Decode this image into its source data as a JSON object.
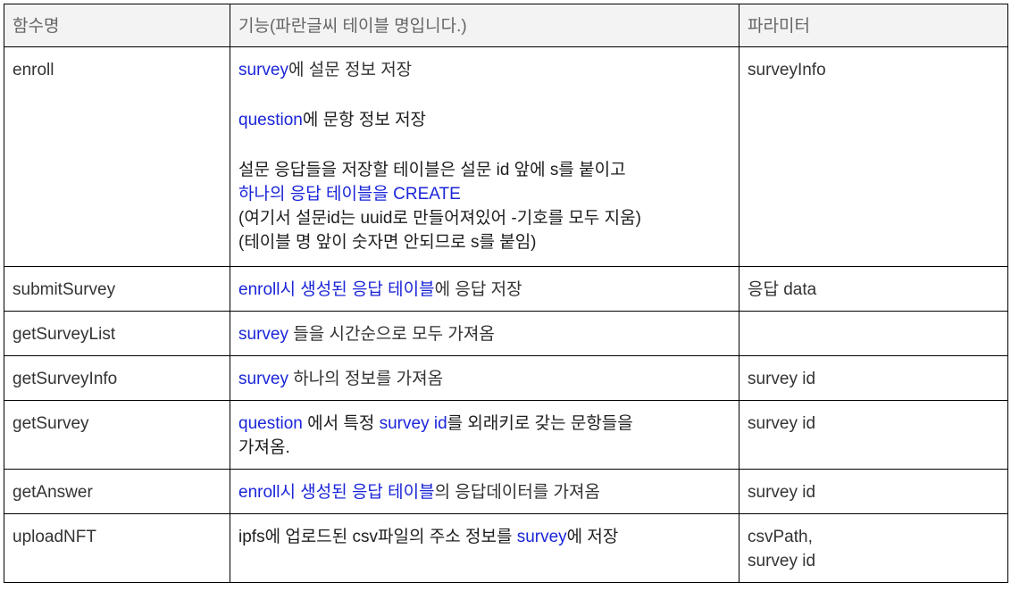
{
  "header": {
    "col1": "함수명",
    "col2": "기능(파란글씨 테이블 명입니다.)",
    "col3": "파라미터"
  },
  "rows": [
    {
      "name": "enroll",
      "param": "surveyInfo",
      "desc": {
        "l1_table": "survey",
        "l1_text": "에  설문 정보 저장",
        "l2_table": "question",
        "l2_text": "에 문항 정보 저장",
        "l3": "설문 응답들을 저장할 테이블은 설문 id 앞에 s를 붙이고",
        "l4": "하나의 응답 테이블을 CREATE",
        "l5": "(여기서 설문id는 uuid로 만들어져있어 -기호를 모두 지움)",
        "l6": "(테이블 명 앞이 숫자면 안되므로 s를 붙임)"
      }
    },
    {
      "name": "submitSurvey",
      "param": "응답 data",
      "desc": {
        "table": "enroll시 생성된 응답 테이블",
        "text": "에 응답 저장"
      }
    },
    {
      "name": "getSurveyList",
      "param": "",
      "desc": {
        "table": "survey",
        "text": " 들을 시간순으로 모두 가져옴"
      }
    },
    {
      "name": "getSurveyInfo",
      "param": "survey id",
      "desc": {
        "table": "survey",
        "text": " 하나의 정보를 가져옴"
      }
    },
    {
      "name": "getSurvey",
      "param": "survey id",
      "desc": {
        "table": "question",
        "text1": " 에서 특정 ",
        "table2": "survey id",
        "text2": "를 외래키로 갖는 문항들을",
        "text3": "가져옴."
      }
    },
    {
      "name": "getAnswer",
      "param": "survey id",
      "desc": {
        "table": "enroll시 생성된 응답 테이블",
        "text": "의  응답데이터를 가져옴"
      }
    },
    {
      "name": "uploadNFT",
      "param1": "csvPath,",
      "param2": "survey id",
      "desc": {
        "text1": "ipfs에 업로드된 csv파일의 주소 정보를 ",
        "table": "survey",
        "text2": "에 저장"
      }
    }
  ]
}
